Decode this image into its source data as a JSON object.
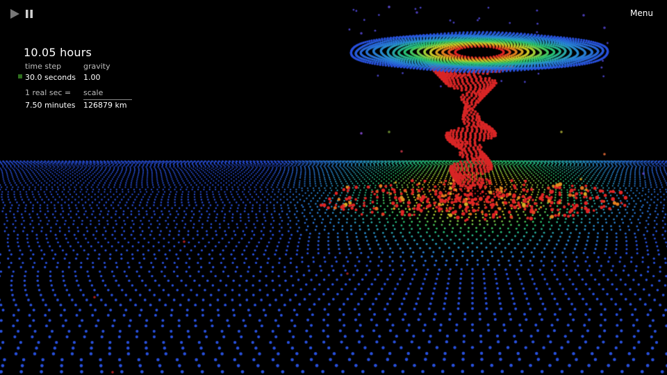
{
  "controls": {
    "play_icon": "play-icon",
    "pause_icon": "pause-icon",
    "menu_label": "Menu"
  },
  "hud": {
    "elapsed": "10.05 hours",
    "time_step_label": "time step",
    "time_step_value": "30.0 seconds",
    "gravity_label": "gravity",
    "gravity_value": "1.00",
    "real_sec_label": "1 real sec =",
    "real_sec_value": "7.50 minutes",
    "scale_label": "scale",
    "scale_value": "126879 km"
  },
  "colors": {
    "background": "#000000",
    "disk_outer": "#2f6fe0",
    "disk_mid": "#31c08a",
    "disk_inner": "#d8d020",
    "core": "#e02525",
    "time_step_marker": "#2e6f1e"
  }
}
